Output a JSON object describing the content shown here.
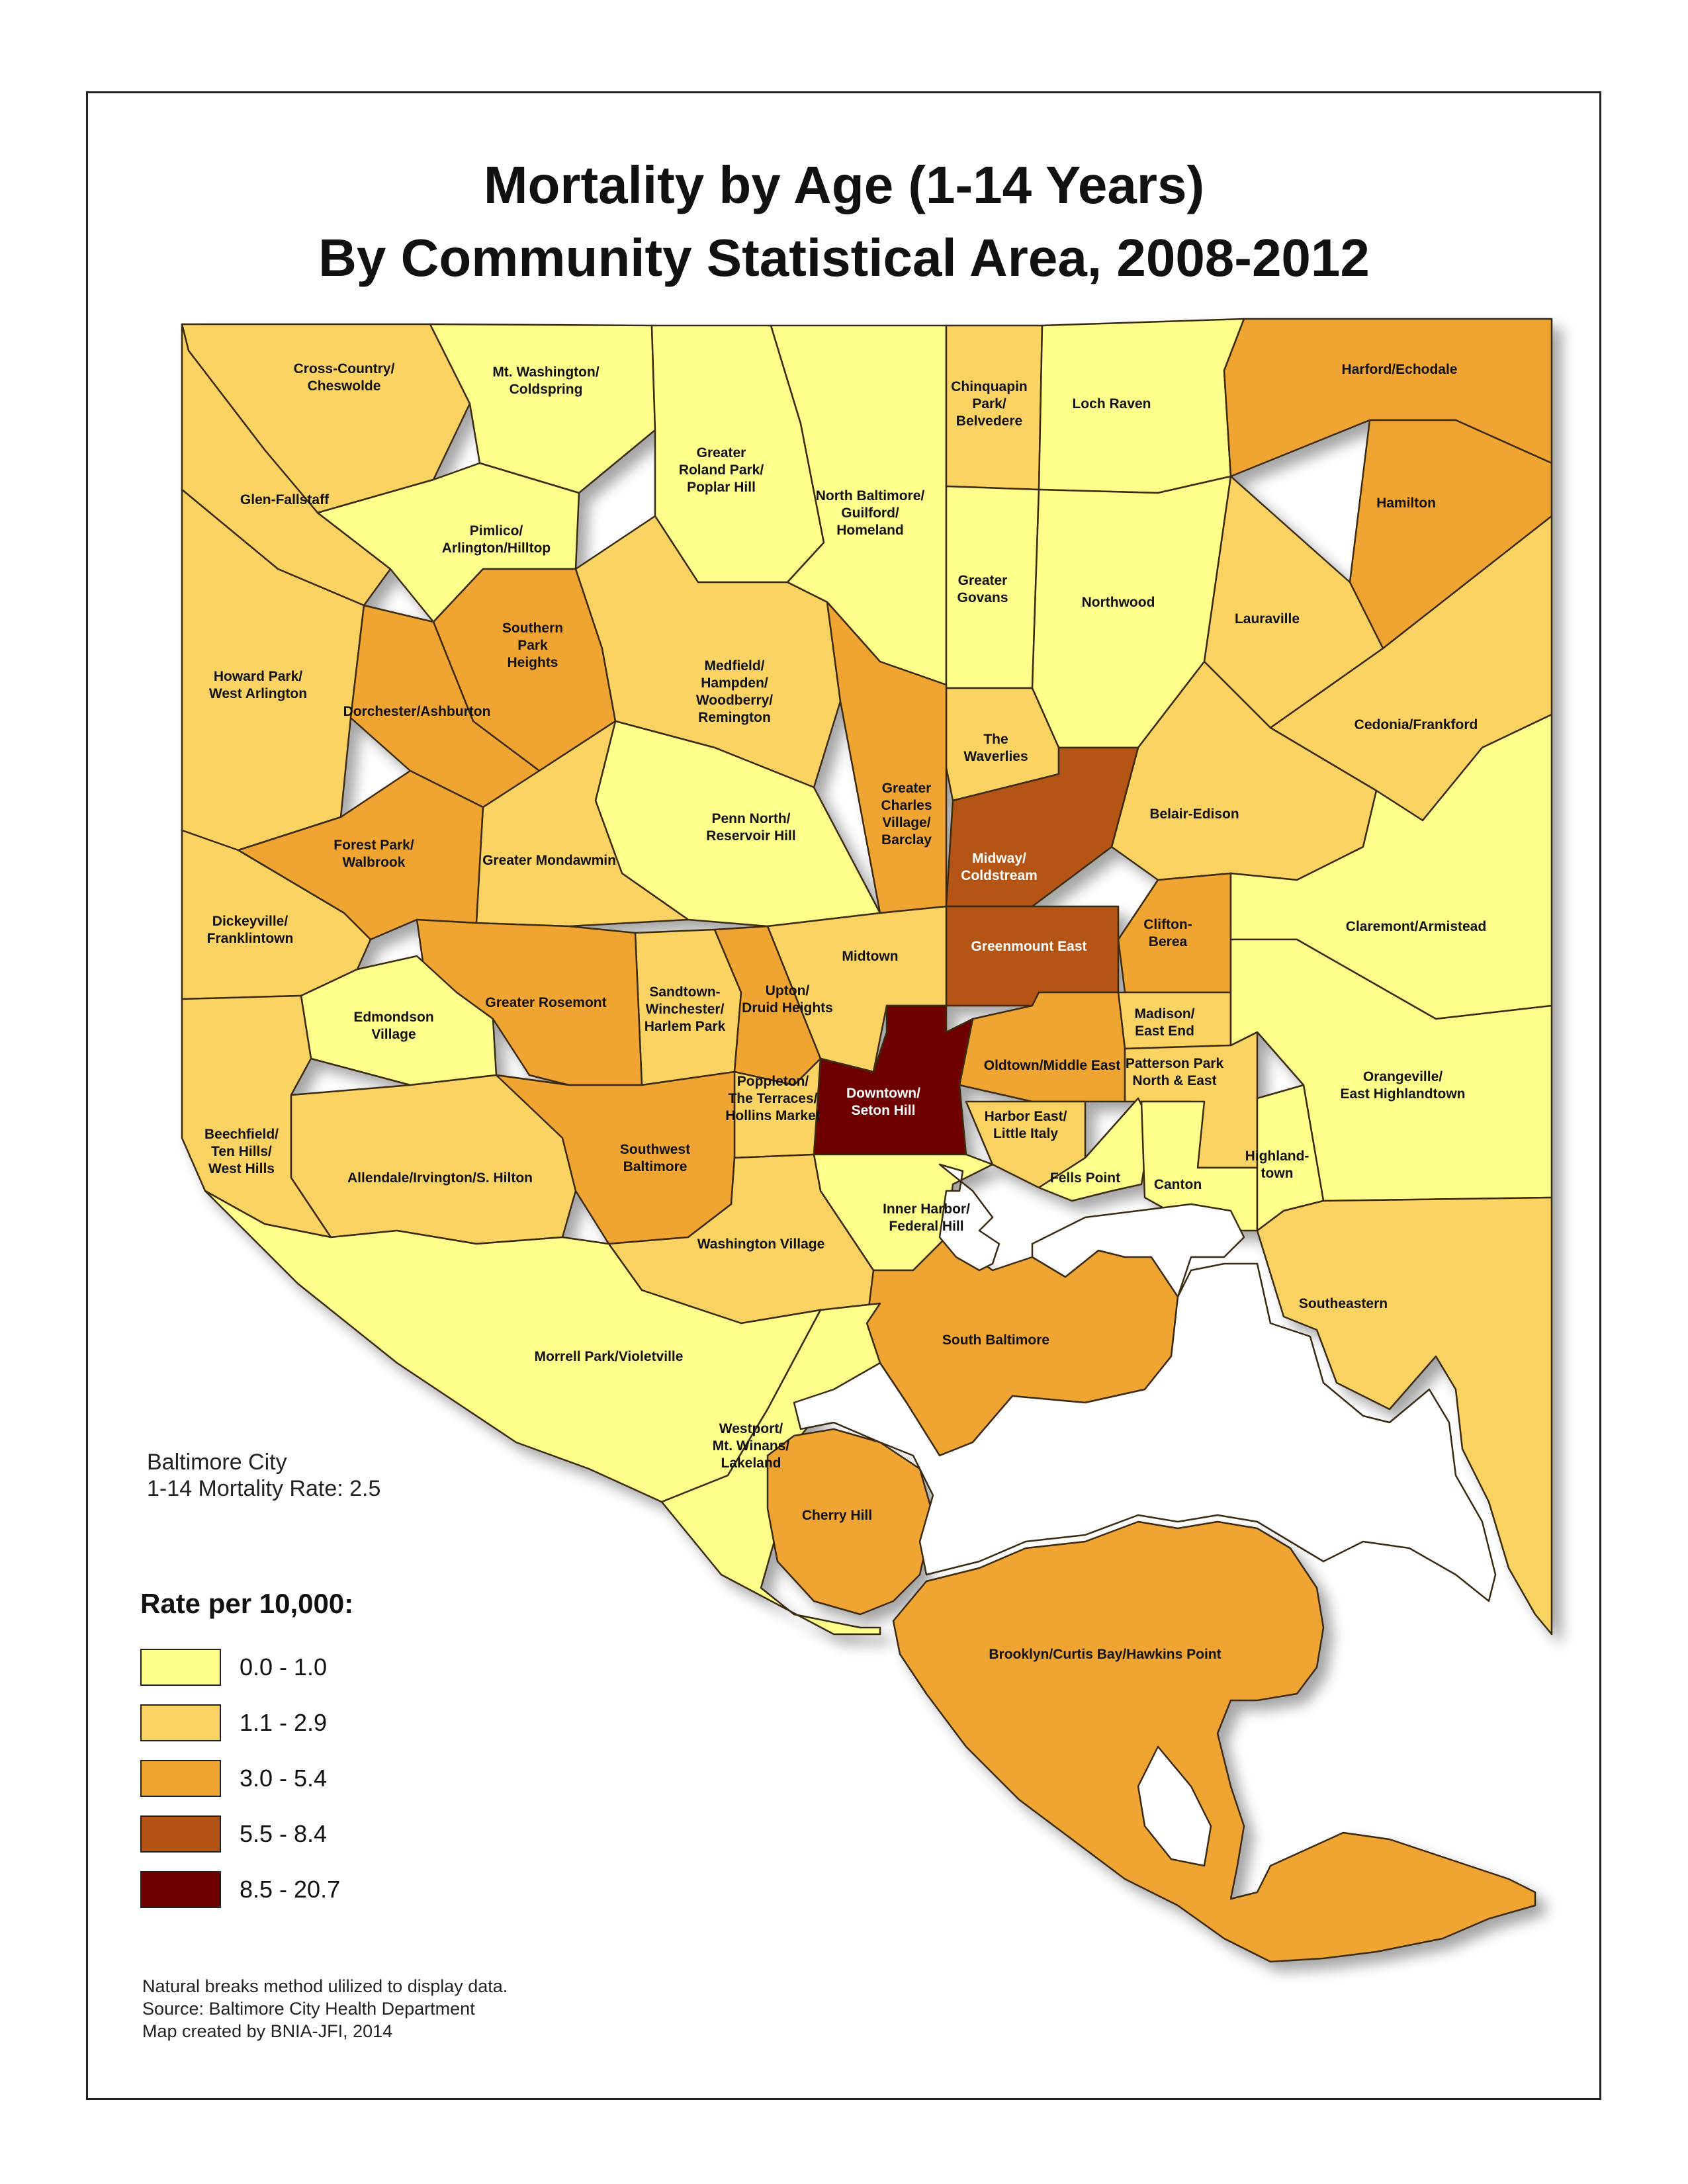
{
  "title": {
    "line1": "Mortality by Age (1-14 Years)",
    "line2": "By Community Statistical Area, 2008-2012"
  },
  "colors": {
    "class1": "#FFFF8C",
    "class2": "#FAD364",
    "class3": "#F0A532",
    "class4": "#B45414",
    "class5": "#6E0000",
    "water": "#FFFFFF",
    "outline": "#3A2A10"
  },
  "city_note": {
    "line1": "Baltimore City",
    "line2": "1-14 Mortality Rate: 2.5"
  },
  "legend": {
    "title": "Rate per 10,000:",
    "items": [
      {
        "label": "0.0 - 1.0",
        "color": "#FFFF8C"
      },
      {
        "label": "1.1 - 2.9",
        "color": "#FAD364"
      },
      {
        "label": "3.0 - 5.4",
        "color": "#F0A532"
      },
      {
        "label": "5.5 - 8.4",
        "color": "#B45414"
      },
      {
        "label": "8.5 - 20.7",
        "color": "#6E0000"
      }
    ]
  },
  "notes": {
    "line1": "Natural breaks method ulilized to display data.",
    "line2": "Source: Baltimore City Health Department",
    "line3": "Map created by BNIA-JFI, 2014"
  },
  "areas": [
    {
      "id": "cross-country",
      "lines": [
        "Cross-Country/",
        "Cheswolde"
      ],
      "cls": 2
    },
    {
      "id": "mt-washington",
      "lines": [
        "Mt. Washington/",
        "Coldspring"
      ],
      "cls": 1
    },
    {
      "id": "roland-park",
      "lines": [
        "Greater",
        "Roland Park/",
        "Poplar Hill"
      ],
      "cls": 1
    },
    {
      "id": "north-baltimore",
      "lines": [
        "North Baltimore/",
        "Guilford/",
        "Homeland"
      ],
      "cls": 1
    },
    {
      "id": "chinquapin",
      "lines": [
        "Chinquapin",
        "Park/",
        "Belvedere"
      ],
      "cls": 2
    },
    {
      "id": "loch-raven",
      "lines": [
        "Loch Raven"
      ],
      "cls": 1
    },
    {
      "id": "harford",
      "lines": [
        "Harford/Echodale"
      ],
      "cls": 3
    },
    {
      "id": "glen-fallstaff",
      "lines": [
        "Glen-Fallstaff"
      ],
      "cls": 2
    },
    {
      "id": "pimlico",
      "lines": [
        "Pimlico/",
        "Arlington/Hilltop"
      ],
      "cls": 1
    },
    {
      "id": "hamilton",
      "lines": [
        "Hamilton"
      ],
      "cls": 3
    },
    {
      "id": "greater-govans",
      "lines": [
        "Greater",
        "Govans"
      ],
      "cls": 1
    },
    {
      "id": "northwood",
      "lines": [
        "Northwood"
      ],
      "cls": 1
    },
    {
      "id": "lauraville",
      "lines": [
        "Lauraville"
      ],
      "cls": 2
    },
    {
      "id": "southern-park",
      "lines": [
        "Southern",
        "Park",
        "Heights"
      ],
      "cls": 3
    },
    {
      "id": "howard-park",
      "lines": [
        "Howard Park/",
        "West Arlington"
      ],
      "cls": 2
    },
    {
      "id": "medfield",
      "lines": [
        "Medfield/",
        "Hampden/",
        "Woodberry/",
        "Remington"
      ],
      "cls": 2
    },
    {
      "id": "dorchester",
      "lines": [
        "Dorchester/Ashburton"
      ],
      "cls": 3
    },
    {
      "id": "cedonia",
      "lines": [
        "Cedonia/Frankford"
      ],
      "cls": 2
    },
    {
      "id": "waverlies",
      "lines": [
        "The",
        "Waverlies"
      ],
      "cls": 2
    },
    {
      "id": "charles-village",
      "lines": [
        "Greater",
        "Charles",
        "Village/",
        "Barclay"
      ],
      "cls": 3
    },
    {
      "id": "belair-edison",
      "lines": [
        "Belair-Edison"
      ],
      "cls": 2
    },
    {
      "id": "penn-north",
      "lines": [
        "Penn North/",
        "Reservoir Hill"
      ],
      "cls": 1
    },
    {
      "id": "forest-park",
      "lines": [
        "Forest Park/",
        "Walbrook"
      ],
      "cls": 3
    },
    {
      "id": "mondawmin",
      "lines": [
        "Greater Mondawmin"
      ],
      "cls": 2
    },
    {
      "id": "midway",
      "lines": [
        "Midway/",
        "Coldstream"
      ],
      "cls": 4
    },
    {
      "id": "dickeyville",
      "lines": [
        "Dickeyville/",
        "Franklintown"
      ],
      "cls": 2
    },
    {
      "id": "clifton",
      "lines": [
        "Clifton-",
        "Berea"
      ],
      "cls": 3
    },
    {
      "id": "claremont",
      "lines": [
        "Claremont/Armistead"
      ],
      "cls": 1
    },
    {
      "id": "greenmount",
      "lines": [
        "Greenmount East"
      ],
      "cls": 4
    },
    {
      "id": "midtown",
      "lines": [
        "Midtown"
      ],
      "cls": 2
    },
    {
      "id": "sandtown",
      "lines": [
        "Sandtown-",
        "Winchester/",
        "Harlem Park"
      ],
      "cls": 2
    },
    {
      "id": "upton",
      "lines": [
        "Upton/",
        "Druid Heights"
      ],
      "cls": 3
    },
    {
      "id": "rosemont",
      "lines": [
        "Greater Rosemont"
      ],
      "cls": 3
    },
    {
      "id": "edmondson",
      "lines": [
        "Edmondson",
        "Village"
      ],
      "cls": 1
    },
    {
      "id": "madison",
      "lines": [
        "Madison/",
        "East End"
      ],
      "cls": 2
    },
    {
      "id": "oldtown",
      "lines": [
        "Oldtown/Middle East"
      ],
      "cls": 3
    },
    {
      "id": "patterson",
      "lines": [
        "Patterson Park",
        "North & East"
      ],
      "cls": 2
    },
    {
      "id": "orangeville",
      "lines": [
        "Orangeville/",
        "East Highlandtown"
      ],
      "cls": 1
    },
    {
      "id": "downtown",
      "lines": [
        "Downtown/",
        "Seton Hill"
      ],
      "cls": 5
    },
    {
      "id": "poppleton",
      "lines": [
        "Poppleton/",
        "The Terraces/",
        "Hollins Market"
      ],
      "cls": 2
    },
    {
      "id": "harbor-east",
      "lines": [
        "Harbor East/",
        "Little Italy"
      ],
      "cls": 2
    },
    {
      "id": "beechfield",
      "lines": [
        "Beechfield/",
        "Ten Hills/",
        "West Hills"
      ],
      "cls": 2
    },
    {
      "id": "allendale",
      "lines": [
        "Allendale/Irvington/S. Hilton"
      ],
      "cls": 2
    },
    {
      "id": "southwest",
      "lines": [
        "Southwest",
        "Baltimore"
      ],
      "cls": 3
    },
    {
      "id": "fells-point",
      "lines": [
        "Fells Point"
      ],
      "cls": 1
    },
    {
      "id": "canton",
      "lines": [
        "Canton"
      ],
      "cls": 1
    },
    {
      "id": "highlandtown",
      "lines": [
        "Highland-",
        "town"
      ],
      "cls": 1
    },
    {
      "id": "inner-harbor",
      "lines": [
        "Inner Harbor/",
        "Federal Hill"
      ],
      "cls": 1
    },
    {
      "id": "washington-village",
      "lines": [
        "Washington Village"
      ],
      "cls": 2
    },
    {
      "id": "southeastern",
      "lines": [
        "Southeastern"
      ],
      "cls": 2
    },
    {
      "id": "south-baltimore",
      "lines": [
        "South Baltimore"
      ],
      "cls": 3
    },
    {
      "id": "morrell-park",
      "lines": [
        "Morrell Park/Violetville"
      ],
      "cls": 1
    },
    {
      "id": "westport",
      "lines": [
        "Westport/",
        "Mt. Winans/",
        "Lakeland"
      ],
      "cls": 1
    },
    {
      "id": "cherry-hill",
      "lines": [
        "Cherry Hill"
      ],
      "cls": 3
    },
    {
      "id": "brooklyn",
      "lines": [
        "Brooklyn/Curtis Bay/Hawkins Point"
      ],
      "cls": 3
    }
  ]
}
